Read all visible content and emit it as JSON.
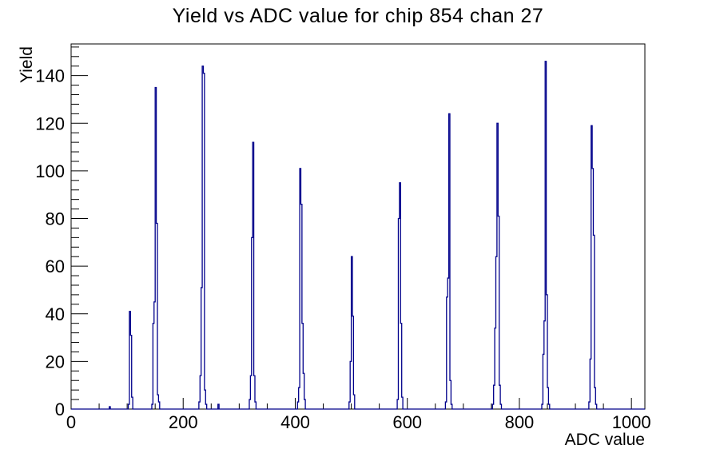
{
  "chart_data": {
    "type": "bar",
    "title": "Yield vs ADC value for chip 854 chan 27",
    "xlabel": "ADC value",
    "ylabel": "Yield",
    "xlim": [
      0,
      1024
    ],
    "ylim": [
      0,
      153.3
    ],
    "x_major_ticks": [
      0,
      200,
      400,
      600,
      800,
      1000
    ],
    "x_minor_tick_step": 50,
    "y_major_ticks": [
      0,
      20,
      40,
      60,
      80,
      100,
      120,
      140
    ],
    "y_minor_tick_step": 4,
    "grid": false,
    "legend": null,
    "line_color": "#00008b",
    "axis_color": "#000000",
    "background": "#ffffff",
    "bin_width": 2,
    "bins": [
      [
        69,
        1
      ],
      [
        103,
        2
      ],
      [
        105,
        41
      ],
      [
        107,
        31
      ],
      [
        109,
        5
      ],
      [
        145,
        2
      ],
      [
        147,
        36
      ],
      [
        149,
        45
      ],
      [
        151,
        135
      ],
      [
        153,
        78
      ],
      [
        155,
        6
      ],
      [
        157,
        3
      ],
      [
        229,
        3
      ],
      [
        231,
        14
      ],
      [
        233,
        51
      ],
      [
        235,
        144
      ],
      [
        237,
        141
      ],
      [
        239,
        8
      ],
      [
        241,
        2
      ],
      [
        263,
        2
      ],
      [
        319,
        4
      ],
      [
        321,
        14
      ],
      [
        323,
        72
      ],
      [
        325,
        112
      ],
      [
        327,
        14
      ],
      [
        329,
        3
      ],
      [
        405,
        3
      ],
      [
        407,
        9
      ],
      [
        409,
        101
      ],
      [
        411,
        86
      ],
      [
        413,
        36
      ],
      [
        415,
        15
      ],
      [
        417,
        4
      ],
      [
        497,
        3
      ],
      [
        499,
        20
      ],
      [
        501,
        64
      ],
      [
        503,
        39
      ],
      [
        505,
        6
      ],
      [
        583,
        4
      ],
      [
        585,
        80
      ],
      [
        587,
        95
      ],
      [
        589,
        36
      ],
      [
        591,
        5
      ],
      [
        669,
        3
      ],
      [
        671,
        47
      ],
      [
        673,
        55
      ],
      [
        675,
        124
      ],
      [
        677,
        12
      ],
      [
        679,
        2
      ],
      [
        753,
        2
      ],
      [
        755,
        10
      ],
      [
        757,
        34
      ],
      [
        759,
        64
      ],
      [
        761,
        120
      ],
      [
        763,
        81
      ],
      [
        765,
        10
      ],
      [
        767,
        2
      ],
      [
        841,
        2
      ],
      [
        843,
        23
      ],
      [
        845,
        37
      ],
      [
        847,
        146
      ],
      [
        849,
        48
      ],
      [
        851,
        9
      ],
      [
        853,
        2
      ],
      [
        925,
        3
      ],
      [
        927,
        21
      ],
      [
        929,
        119
      ],
      [
        931,
        101
      ],
      [
        933,
        73
      ],
      [
        935,
        9
      ],
      [
        937,
        2
      ]
    ]
  }
}
